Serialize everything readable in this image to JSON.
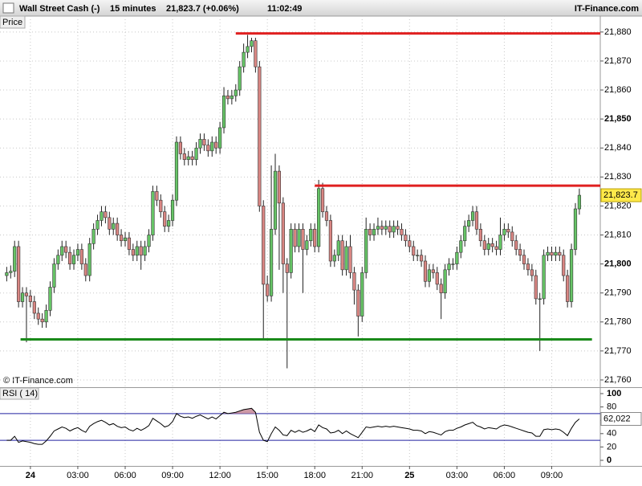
{
  "chart_data": {
    "type": "candlestick",
    "instrument": "Wall Street Cash (-)",
    "timeframe": "15 minutes",
    "price_text": "21,823.7 (+0.06%)",
    "time": "11:02:49",
    "brand": "IT-Finance.com",
    "price_label": "Price",
    "copyright": "© IT-Finance.com",
    "last_label": "21,823.7",
    "up_color": "#66c466",
    "down_color": "#d98683",
    "xlim": [
      -1.7,
      150.3
    ],
    "ylim": [
      21757.5,
      21885.5
    ],
    "grid": true,
    "xticks": [
      {
        "value": 6,
        "label": "24"
      },
      {
        "value": 18,
        "label": "03:00"
      },
      {
        "value": 30,
        "label": "06:00"
      },
      {
        "value": 42,
        "label": "09:00"
      },
      {
        "value": 54,
        "label": "12:00"
      },
      {
        "value": 66,
        "label": "15:00"
      },
      {
        "value": 78,
        "label": "18:00"
      },
      {
        "value": 90,
        "label": "21:00"
      },
      {
        "value": 102,
        "label": "25"
      },
      {
        "value": 114,
        "label": "03:00"
      },
      {
        "value": 126,
        "label": "06:00"
      },
      {
        "value": 138,
        "label": "09:00"
      }
    ],
    "yticks": [
      {
        "value": 21760,
        "label": "21,760"
      },
      {
        "value": 21770,
        "label": "21,770"
      },
      {
        "value": 21780,
        "label": "21,780"
      },
      {
        "value": 21790,
        "label": "21,790"
      },
      {
        "value": 21800,
        "label": "21,800"
      },
      {
        "value": 21810,
        "label": "21,810"
      },
      {
        "value": 21820,
        "label": "21,820"
      },
      {
        "value": 21830,
        "label": "21,830"
      },
      {
        "value": 21840,
        "label": "21,840"
      },
      {
        "value": 21850,
        "label": "21,850"
      },
      {
        "value": 21860,
        "label": "21,860"
      },
      {
        "value": 21870,
        "label": "21,870"
      },
      {
        "value": 21880,
        "label": "21,880"
      }
    ],
    "hlines": [
      {
        "value": 21879.5,
        "from": 58,
        "to": 150.3,
        "color": "#e02020"
      },
      {
        "value": 21827,
        "from": 78,
        "to": 150.3,
        "color": "#e02020"
      },
      {
        "value": 21774,
        "from": 3.5,
        "to": 148.2,
        "color": "#1a8a1a"
      }
    ],
    "candles": [
      [
        21796,
        21799,
        21794,
        21797
      ],
      [
        21797,
        21799.5,
        21795,
        21797.5
      ],
      [
        21797.5,
        21808,
        21795.5,
        21806
      ],
      [
        21806,
        21808,
        21785,
        21787
      ],
      [
        21787,
        21792,
        21785,
        21790
      ],
      [
        21790,
        21792,
        21773,
        21789
      ],
      [
        21789,
        21791,
        21785,
        21787
      ],
      [
        21787,
        21789,
        21781,
        21783
      ],
      [
        21783,
        21785,
        21779,
        21781
      ],
      [
        21781,
        21783,
        21778,
        21780
      ],
      [
        21780,
        21786,
        21778,
        21784
      ],
      [
        21784,
        21794,
        21782,
        21792
      ],
      [
        21792,
        21802,
        21790,
        21800
      ],
      [
        21800,
        21805,
        21798,
        21803
      ],
      [
        21803,
        21808,
        21801,
        21806
      ],
      [
        21806,
        21808,
        21802,
        21804
      ],
      [
        21804,
        21806,
        21798,
        21800
      ],
      [
        21800,
        21805,
        21798,
        21803
      ],
      [
        21803,
        21807,
        21801,
        21805
      ],
      [
        21805,
        21807,
        21798,
        21800
      ],
      [
        21800,
        21802,
        21794,
        21796
      ],
      [
        21796,
        21809,
        21794,
        21807
      ],
      [
        21807,
        21814,
        21805,
        21812
      ],
      [
        21812,
        21817,
        21810,
        21815
      ],
      [
        21815,
        21820,
        21813,
        21818
      ],
      [
        21818,
        21820,
        21814,
        21816
      ],
      [
        21816,
        21818,
        21810,
        21812
      ],
      [
        21812,
        21816,
        21810,
        21814
      ],
      [
        21814,
        21816,
        21808,
        21810
      ],
      [
        21810,
        21812,
        21806,
        21808
      ],
      [
        21808,
        21811,
        21806,
        21809
      ],
      [
        21809,
        21811,
        21803,
        21805
      ],
      [
        21805,
        21807,
        21801,
        21803
      ],
      [
        21803,
        21808,
        21801,
        21806
      ],
      [
        21806,
        21808,
        21798,
        21803
      ],
      [
        21803,
        21808,
        21801,
        21806
      ],
      [
        21806,
        21812,
        21804,
        21810
      ],
      [
        21810,
        21827,
        21808,
        21825
      ],
      [
        21825,
        21827,
        21820,
        21822
      ],
      [
        21822,
        21824,
        21816,
        21818
      ],
      [
        21818,
        21820,
        21811,
        21813
      ],
      [
        21813,
        21817,
        21811,
        21815
      ],
      [
        21815,
        21824,
        21813,
        21822
      ],
      [
        21822,
        21844,
        21820,
        21842
      ],
      [
        21842,
        21844,
        21836,
        21838
      ],
      [
        21838,
        21840,
        21834,
        21836
      ],
      [
        21836,
        21839,
        21834,
        21837
      ],
      [
        21837,
        21839,
        21834,
        21836
      ],
      [
        21836,
        21842,
        21834,
        21840
      ],
      [
        21840,
        21845,
        21838,
        21843
      ],
      [
        21843,
        21845,
        21839,
        21841
      ],
      [
        21841,
        21843,
        21837,
        21839
      ],
      [
        21839,
        21844,
        21837,
        21842
      ],
      [
        21842,
        21844,
        21838,
        21840
      ],
      [
        21840,
        21849,
        21838,
        21847
      ],
      [
        21847,
        21861,
        21845,
        21858
      ],
      [
        21858,
        21860,
        21855,
        21857
      ],
      [
        21857,
        21860,
        21855,
        21858
      ],
      [
        21858,
        21862,
        21856,
        21860
      ],
      [
        21860,
        21870,
        21858,
        21868
      ],
      [
        21868,
        21876,
        21866,
        21873
      ],
      [
        21873,
        21879,
        21871,
        21875
      ],
      [
        21875,
        21878,
        21873,
        21877
      ],
      [
        21877,
        21878,
        21866,
        21868
      ],
      [
        21868,
        21870,
        21818,
        21820
      ],
      [
        21820,
        21822,
        21774,
        21793
      ],
      [
        21793,
        21796,
        21787,
        21789
      ],
      [
        21789,
        21834,
        21787,
        21812
      ],
      [
        21812,
        21838,
        21810,
        21832
      ],
      [
        21832,
        21834,
        21798,
        21821
      ],
      [
        21821,
        21823,
        21790,
        21800
      ],
      [
        21800,
        21802,
        21764,
        21797
      ],
      [
        21797,
        21814,
        21795,
        21812
      ],
      [
        21812,
        21814,
        21804,
        21806
      ],
      [
        21806,
        21814,
        21804,
        21812
      ],
      [
        21812,
        21814,
        21790,
        21805
      ],
      [
        21805,
        21810,
        21803,
        21808
      ],
      [
        21808,
        21814,
        21806,
        21812
      ],
      [
        21812,
        21814,
        21804,
        21806
      ],
      [
        21806,
        21829,
        21804,
        21826
      ],
      [
        21826,
        21828,
        21816,
        21818
      ],
      [
        21818,
        21820,
        21813,
        21815
      ],
      [
        21815,
        21817,
        21799,
        21801
      ],
      [
        21801,
        21805,
        21799,
        21803
      ],
      [
        21803,
        21810,
        21801,
        21808
      ],
      [
        21808,
        21810,
        21796,
        21798
      ],
      [
        21798,
        21808,
        21796,
        21806
      ],
      [
        21806,
        21810,
        21795,
        21797
      ],
      [
        21797,
        21799,
        21786,
        21791
      ],
      [
        21791,
        21793,
        21775,
        21782
      ],
      [
        21782,
        21799,
        21780,
        21797
      ],
      [
        21797,
        21816,
        21795,
        21812
      ],
      [
        21812,
        21814,
        21808,
        21810
      ],
      [
        21810,
        21814,
        21808,
        21812
      ],
      [
        21812,
        21816,
        21810,
        21813
      ],
      [
        21813,
        21815,
        21810,
        21812
      ],
      [
        21812,
        21815,
        21810,
        21813
      ],
      [
        21813,
        21815,
        21809,
        21811
      ],
      [
        21811,
        21815,
        21809,
        21813
      ],
      [
        21813,
        21815,
        21810,
        21812
      ],
      [
        21812,
        21814,
        21808,
        21810
      ],
      [
        21810,
        21812,
        21806,
        21808
      ],
      [
        21808,
        21810,
        21804,
        21806
      ],
      [
        21806,
        21808,
        21801,
        21803
      ],
      [
        21803,
        21805,
        21801,
        21803
      ],
      [
        21803,
        21805,
        21799,
        21801
      ],
      [
        21801,
        21803,
        21792,
        21794
      ],
      [
        21794,
        21800,
        21792,
        21798
      ],
      [
        21798,
        21800,
        21795,
        21797
      ],
      [
        21797,
        21799,
        21791,
        21793
      ],
      [
        21793,
        21795,
        21781,
        21790
      ],
      [
        21790,
        21800,
        21788,
        21798
      ],
      [
        21798,
        21802,
        21796,
        21800
      ],
      [
        21800,
        21802,
        21798,
        21800
      ],
      [
        21800,
        21806,
        21798,
        21804
      ],
      [
        21804,
        21810,
        21802,
        21808
      ],
      [
        21808,
        21815,
        21806,
        21813
      ],
      [
        21813,
        21817,
        21811,
        21815
      ],
      [
        21815,
        21820,
        21813,
        21818
      ],
      [
        21818,
        21820,
        21810,
        21812
      ],
      [
        21812,
        21814,
        21806,
        21808
      ],
      [
        21808,
        21810,
        21803,
        21805
      ],
      [
        21805,
        21809,
        21803,
        21807
      ],
      [
        21807,
        21809,
        21804,
        21806
      ],
      [
        21806,
        21808,
        21803,
        21805
      ],
      [
        21805,
        21816,
        21803,
        21810
      ],
      [
        21810,
        21814,
        21808,
        21812
      ],
      [
        21812,
        21814,
        21809,
        21811
      ],
      [
        21811,
        21813,
        21806,
        21808
      ],
      [
        21808,
        21810,
        21803,
        21805
      ],
      [
        21805,
        21807,
        21801,
        21803
      ],
      [
        21803,
        21805,
        21798,
        21800
      ],
      [
        21800,
        21802,
        21796,
        21798
      ],
      [
        21798,
        21800,
        21794,
        21796
      ],
      [
        21796,
        21798,
        21786,
        21788
      ],
      [
        21788,
        21790,
        21770,
        21788
      ],
      [
        21788,
        21805,
        21786,
        21803
      ],
      [
        21803,
        21806,
        21801,
        21804
      ],
      [
        21804,
        21806,
        21801,
        21803
      ],
      [
        21803,
        21806,
        21801,
        21804
      ],
      [
        21804,
        21806,
        21801,
        21803
      ],
      [
        21803,
        21805,
        21794,
        21796
      ],
      [
        21796,
        21798,
        21785,
        21787
      ],
      [
        21787,
        21807,
        21785,
        21805
      ],
      [
        21805,
        21821,
        21803,
        21819
      ],
      [
        21819,
        21826,
        21817,
        21823.7
      ]
    ],
    "rsi": {
      "label": "RSI ( 14)",
      "color": "#000000",
      "level_color": "#2020a0",
      "overbought_color": "#c08090",
      "ylim": [
        -8.4,
        107.2
      ],
      "yticks": [
        0,
        20,
        40,
        60,
        80,
        100
      ],
      "levels": [
        30,
        70
      ],
      "last_label": "62,022",
      "values": [
        30,
        30,
        36,
        27,
        29,
        28,
        27,
        25,
        24,
        24,
        29,
        36,
        44,
        47,
        50,
        48,
        44,
        47,
        49,
        45,
        42,
        51,
        55,
        58,
        60,
        57,
        53,
        55,
        51,
        49,
        50,
        46,
        44,
        48,
        45,
        48,
        52,
        63,
        59,
        55,
        50,
        52,
        58,
        70,
        66,
        64,
        65,
        63,
        66,
        68,
        65,
        62,
        65,
        62,
        67,
        72,
        70,
        71,
        72,
        74,
        76,
        77,
        78,
        72,
        42,
        30,
        28,
        40,
        50,
        45,
        38,
        37,
        45,
        42,
        45,
        42,
        44,
        47,
        43,
        53,
        49,
        47,
        41,
        42,
        45,
        40,
        44,
        40,
        37,
        34,
        42,
        50,
        49,
        50,
        51,
        50,
        51,
        50,
        51,
        50,
        49,
        48,
        47,
        45,
        45,
        44,
        40,
        43,
        42,
        40,
        38,
        43,
        45,
        45,
        48,
        50,
        53,
        55,
        57,
        52,
        50,
        47,
        49,
        48,
        47,
        51,
        53,
        52,
        50,
        48,
        46,
        44,
        42,
        41,
        36,
        36,
        46,
        47,
        46,
        47,
        46,
        42,
        37,
        48,
        57,
        62.022
      ]
    }
  }
}
